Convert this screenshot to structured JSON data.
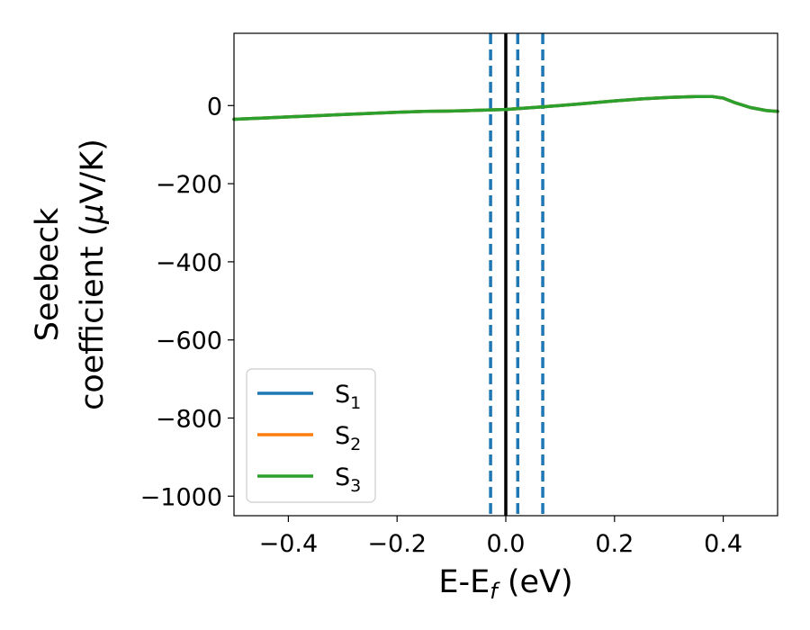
{
  "chart_data": {
    "type": "line",
    "xlabel": "E-E",
    "xlabel_sub": "f",
    "xlabel_unit": " (eV)",
    "ylabel_line1": "Seebeck",
    "ylabel_line2": "coefficient  (",
    "ylabel_mu": "μ",
    "ylabel_unit_tail": "V/K)",
    "xlim": [
      -0.5,
      0.5
    ],
    "ylim": [
      -1050,
      185
    ],
    "xticks": [
      -0.4,
      -0.2,
      0.0,
      0.2,
      0.4
    ],
    "xtick_labels": [
      "−0.4",
      "−0.2",
      "0.0",
      "0.2",
      "0.4"
    ],
    "yticks": [
      0,
      -200,
      -400,
      -600,
      -800,
      -1000
    ],
    "ytick_labels": [
      "0",
      "−200",
      "−400",
      "−600",
      "−800",
      "−1000"
    ],
    "grid": false,
    "legend_position": "lower-left",
    "vertical_lines": [
      {
        "x": -0.028,
        "style": "dashed",
        "color": "#1f77b4"
      },
      {
        "x": 0.0,
        "style": "solid",
        "color": "#000000"
      },
      {
        "x": 0.022,
        "style": "dashed",
        "color": "#1f77b4"
      },
      {
        "x": 0.068,
        "style": "dashed",
        "color": "#1f77b4"
      }
    ],
    "series": [
      {
        "name": "S",
        "sub": "1",
        "color": "#1f77b4",
        "x": [
          -0.5,
          -0.45,
          -0.4,
          -0.35,
          -0.3,
          -0.25,
          -0.2,
          -0.15,
          -0.1,
          -0.05,
          0.0,
          0.05,
          0.1,
          0.15,
          0.2,
          0.25,
          0.3,
          0.35,
          0.38,
          0.4,
          0.42,
          0.45,
          0.48,
          0.5
        ],
        "y": [
          -35,
          -32,
          -29,
          -26,
          -23,
          -20,
          -17,
          -15,
          -14,
          -12,
          -10,
          -5,
          0,
          6,
          12,
          17,
          21,
          23,
          23,
          19,
          8,
          -5,
          -13,
          -15
        ]
      },
      {
        "name": "S",
        "sub": "2",
        "color": "#ff7f0e",
        "x": [
          -0.5,
          -0.45,
          -0.4,
          -0.35,
          -0.3,
          -0.25,
          -0.2,
          -0.15,
          -0.1,
          -0.05,
          0.0,
          0.05,
          0.1,
          0.15,
          0.2,
          0.25,
          0.3,
          0.35,
          0.38,
          0.4,
          0.42,
          0.45,
          0.48,
          0.5
        ],
        "y": [
          -35,
          -32,
          -29,
          -26,
          -23,
          -20,
          -17,
          -15,
          -14,
          -12,
          -10,
          -5,
          0,
          6,
          12,
          17,
          21,
          23,
          23,
          19,
          8,
          -5,
          -13,
          -15
        ]
      },
      {
        "name": "S",
        "sub": "3",
        "color": "#2ca02c",
        "x": [
          -0.5,
          -0.45,
          -0.4,
          -0.35,
          -0.3,
          -0.25,
          -0.2,
          -0.15,
          -0.1,
          -0.05,
          0.0,
          0.05,
          0.1,
          0.15,
          0.2,
          0.25,
          0.3,
          0.35,
          0.38,
          0.4,
          0.42,
          0.45,
          0.48,
          0.5
        ],
        "y": [
          -35,
          -32,
          -29,
          -26,
          -23,
          -20,
          -17,
          -15,
          -14,
          -12,
          -10,
          -5,
          0,
          6,
          12,
          17,
          21,
          23,
          23,
          19,
          8,
          -5,
          -13,
          -15
        ]
      }
    ]
  }
}
